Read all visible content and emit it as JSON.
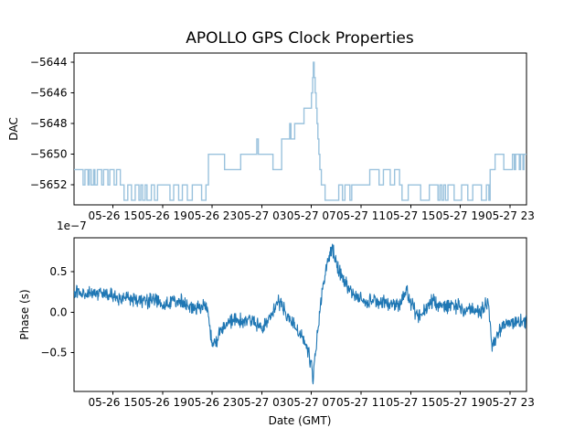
{
  "figure": {
    "title": "APOLLO GPS Clock Properties",
    "xlabel": "Date (GMT)",
    "background": "#ffffff",
    "text_color": "#000000"
  },
  "chart_data": [
    {
      "type": "line",
      "drawstyle": "steps-post",
      "name": "dac",
      "title": "APOLLO GPS Clock Properties",
      "ylabel": "DAC",
      "line_color": "#9ac2dd",
      "grid": false,
      "legend": "none",
      "xlim_hours": [
        -0.13,
        36.33
      ],
      "ylim": [
        -5653.3,
        -5643.4
      ],
      "ytick_values": [
        -5644,
        -5646,
        -5648,
        -5650,
        -5652
      ],
      "ytick_labels": [
        "−5644",
        "−5646",
        "−5648",
        "−5650",
        "−5652"
      ],
      "xtick_hours": [
        3,
        7,
        11,
        15,
        19,
        23,
        27,
        31,
        35
      ],
      "xtick_labels": [
        "05-26 15",
        "05-26 19",
        "05-26 23",
        "05-27 03",
        "05-27 07",
        "05-27 11",
        "05-27 15",
        "05-27 19",
        "05-27 23"
      ],
      "step_points": [
        [
          -0.13,
          -5651
        ],
        [
          0.6,
          -5652
        ],
        [
          0.75,
          -5651
        ],
        [
          1.0,
          -5652
        ],
        [
          1.1,
          -5651
        ],
        [
          1.25,
          -5652
        ],
        [
          1.45,
          -5651
        ],
        [
          1.55,
          -5652
        ],
        [
          1.75,
          -5651
        ],
        [
          2.1,
          -5652
        ],
        [
          2.25,
          -5651
        ],
        [
          2.6,
          -5652
        ],
        [
          2.75,
          -5651
        ],
        [
          3.1,
          -5652
        ],
        [
          3.3,
          -5651
        ],
        [
          3.6,
          -5652
        ],
        [
          3.9,
          -5653
        ],
        [
          4.2,
          -5652
        ],
        [
          4.5,
          -5653
        ],
        [
          4.8,
          -5652
        ],
        [
          5.1,
          -5653
        ],
        [
          5.25,
          -5652
        ],
        [
          5.4,
          -5653
        ],
        [
          5.6,
          -5652
        ],
        [
          5.75,
          -5653
        ],
        [
          6.1,
          -5652
        ],
        [
          6.35,
          -5653
        ],
        [
          6.6,
          -5652
        ],
        [
          7.6,
          -5653
        ],
        [
          7.9,
          -5652
        ],
        [
          8.3,
          -5653
        ],
        [
          8.6,
          -5652
        ],
        [
          9.0,
          -5653
        ],
        [
          9.4,
          -5652
        ],
        [
          10.15,
          -5653
        ],
        [
          10.5,
          -5652
        ],
        [
          10.7,
          -5650
        ],
        [
          12.0,
          -5651
        ],
        [
          13.3,
          -5650
        ],
        [
          14.6,
          -5649
        ],
        [
          14.72,
          -5650
        ],
        [
          15.9,
          -5651
        ],
        [
          16.6,
          -5649
        ],
        [
          17.25,
          -5648
        ],
        [
          17.35,
          -5649
        ],
        [
          17.65,
          -5648
        ],
        [
          18.4,
          -5647
        ],
        [
          19.0,
          -5646
        ],
        [
          19.1,
          -5645
        ],
        [
          19.15,
          -5644
        ],
        [
          19.22,
          -5645
        ],
        [
          19.3,
          -5646
        ],
        [
          19.38,
          -5647
        ],
        [
          19.45,
          -5648
        ],
        [
          19.52,
          -5649
        ],
        [
          19.6,
          -5650
        ],
        [
          19.68,
          -5651
        ],
        [
          19.8,
          -5652
        ],
        [
          20.1,
          -5653
        ],
        [
          21.2,
          -5652
        ],
        [
          21.5,
          -5653
        ],
        [
          21.7,
          -5652
        ],
        [
          22.1,
          -5653
        ],
        [
          22.25,
          -5652
        ],
        [
          23.7,
          -5651
        ],
        [
          24.45,
          -5652
        ],
        [
          24.8,
          -5651
        ],
        [
          25.35,
          -5652
        ],
        [
          25.7,
          -5651
        ],
        [
          26.1,
          -5652
        ],
        [
          26.3,
          -5653
        ],
        [
          26.8,
          -5652
        ],
        [
          27.8,
          -5653
        ],
        [
          28.5,
          -5652
        ],
        [
          29.2,
          -5653
        ],
        [
          29.35,
          -5652
        ],
        [
          29.5,
          -5653
        ],
        [
          29.65,
          -5652
        ],
        [
          29.8,
          -5653
        ],
        [
          30.0,
          -5652
        ],
        [
          30.5,
          -5653
        ],
        [
          31.1,
          -5652
        ],
        [
          31.6,
          -5653
        ],
        [
          32.0,
          -5652
        ],
        [
          32.7,
          -5653
        ],
        [
          33.1,
          -5652
        ],
        [
          33.3,
          -5653
        ],
        [
          33.4,
          -5651
        ],
        [
          33.8,
          -5650
        ],
        [
          34.5,
          -5651
        ],
        [
          35.2,
          -5650
        ],
        [
          35.35,
          -5651
        ],
        [
          35.45,
          -5650
        ],
        [
          35.75,
          -5651
        ],
        [
          35.85,
          -5650
        ],
        [
          36.05,
          -5651
        ],
        [
          36.12,
          -5650
        ]
      ]
    },
    {
      "type": "line",
      "name": "phase",
      "ylabel": "Phase (s)",
      "xlabel": "Date (GMT)",
      "offset_text": "1e−7",
      "units": "1e-7 s",
      "line_color": "#1f77b4",
      "grid": false,
      "legend": "none",
      "xlim_hours": [
        -0.13,
        36.33
      ],
      "ylim": [
        -0.98,
        0.92
      ],
      "ytick_values": [
        0.5,
        0.0,
        -0.5
      ],
      "ytick_labels": [
        "0.5",
        "0.0",
        "−0.5"
      ],
      "xtick_hours": [
        3,
        7,
        11,
        15,
        19,
        23,
        27,
        31,
        35
      ],
      "xtick_labels": [
        "05-26 15",
        "05-26 19",
        "05-26 23",
        "05-27 03",
        "05-27 07",
        "05-27 11",
        "05-27 15",
        "05-27 19",
        "05-27 23"
      ],
      "noise_amplitude": 0.05,
      "trend_points": [
        [
          -0.13,
          0.24
        ],
        [
          0.5,
          0.26
        ],
        [
          1.0,
          0.22
        ],
        [
          1.6,
          0.21
        ],
        [
          2.2,
          0.23
        ],
        [
          2.9,
          0.22
        ],
        [
          3.4,
          0.15
        ],
        [
          3.9,
          0.19
        ],
        [
          4.6,
          0.17
        ],
        [
          5.3,
          0.14
        ],
        [
          5.9,
          0.13
        ],
        [
          6.5,
          0.16
        ],
        [
          7.2,
          0.1
        ],
        [
          7.8,
          0.13
        ],
        [
          8.5,
          0.14
        ],
        [
          9.1,
          0.07
        ],
        [
          9.7,
          0.06
        ],
        [
          10.2,
          0.05
        ],
        [
          10.55,
          0.11
        ],
        [
          10.75,
          -0.1
        ],
        [
          10.95,
          -0.36
        ],
        [
          11.15,
          -0.39
        ],
        [
          11.5,
          -0.29
        ],
        [
          12.0,
          -0.16
        ],
        [
          12.5,
          -0.11
        ],
        [
          13.0,
          -0.08
        ],
        [
          13.55,
          -0.13
        ],
        [
          14.0,
          -0.09
        ],
        [
          14.5,
          -0.15
        ],
        [
          15.0,
          -0.19
        ],
        [
          15.5,
          -0.09
        ],
        [
          16.0,
          0.04
        ],
        [
          16.35,
          0.14
        ],
        [
          16.8,
          0.03
        ],
        [
          17.3,
          -0.1
        ],
        [
          17.8,
          -0.23
        ],
        [
          18.3,
          -0.31
        ],
        [
          18.7,
          -0.46
        ],
        [
          19.0,
          -0.67
        ],
        [
          19.12,
          -0.88
        ],
        [
          19.3,
          -0.56
        ],
        [
          19.5,
          -0.26
        ],
        [
          19.7,
          0.04
        ],
        [
          20.0,
          0.36
        ],
        [
          20.3,
          0.62
        ],
        [
          20.5,
          0.71
        ],
        [
          20.66,
          0.82
        ],
        [
          20.9,
          0.63
        ],
        [
          21.2,
          0.53
        ],
        [
          21.5,
          0.46
        ],
        [
          21.9,
          0.31
        ],
        [
          22.3,
          0.22
        ],
        [
          22.9,
          0.18
        ],
        [
          23.4,
          0.14
        ],
        [
          24.1,
          0.12
        ],
        [
          24.8,
          0.11
        ],
        [
          25.6,
          0.1
        ],
        [
          26.1,
          0.09
        ],
        [
          26.45,
          0.21
        ],
        [
          26.65,
          0.28
        ],
        [
          26.9,
          0.13
        ],
        [
          27.3,
          0.02
        ],
        [
          27.7,
          -0.05
        ],
        [
          28.1,
          0.0
        ],
        [
          28.6,
          0.13
        ],
        [
          28.9,
          0.15
        ],
        [
          29.2,
          0.06
        ],
        [
          29.7,
          0.09
        ],
        [
          30.3,
          0.06
        ],
        [
          30.8,
          0.08
        ],
        [
          31.3,
          0.05
        ],
        [
          31.8,
          0.06
        ],
        [
          32.3,
          0.02
        ],
        [
          32.8,
          0.03
        ],
        [
          33.1,
          0.1
        ],
        [
          33.25,
          0.18
        ],
        [
          33.35,
          -0.08
        ],
        [
          33.5,
          -0.34
        ],
        [
          33.6,
          -0.42
        ],
        [
          33.9,
          -0.3
        ],
        [
          34.2,
          -0.22
        ],
        [
          34.65,
          -0.13
        ],
        [
          35.1,
          -0.15
        ],
        [
          35.5,
          -0.11
        ],
        [
          35.9,
          -0.1
        ],
        [
          36.33,
          -0.11
        ]
      ]
    }
  ]
}
